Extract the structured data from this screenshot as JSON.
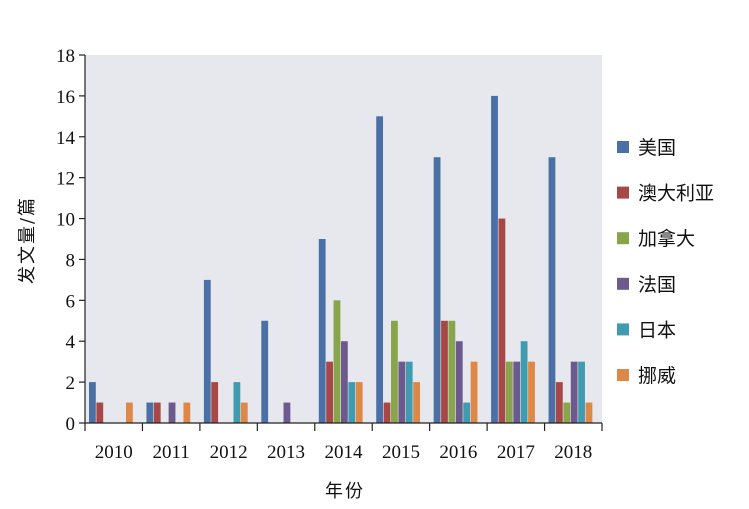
{
  "chart_data": {
    "type": "bar",
    "title": "",
    "xlabel": "年份",
    "ylabel": "发文量/篇",
    "ylim": [
      0,
      18
    ],
    "yticks": [
      0,
      2,
      4,
      6,
      8,
      10,
      12,
      14,
      16,
      18
    ],
    "categories": [
      "2010",
      "2011",
      "2012",
      "2013",
      "2014",
      "2015",
      "2016",
      "2017",
      "2018"
    ],
    "legend_position": "right",
    "plot_background": "#e7e7ee",
    "series": [
      {
        "name": "美国",
        "color": "#4a70a6",
        "values": [
          2,
          1,
          7,
          5,
          9,
          15,
          13,
          16,
          13
        ]
      },
      {
        "name": "澳大利亚",
        "color": "#a84846",
        "values": [
          1,
          1,
          2,
          0,
          3,
          1,
          5,
          10,
          2
        ]
      },
      {
        "name": "加拿大",
        "color": "#88a54c",
        "values": [
          0,
          0,
          0,
          0,
          6,
          5,
          5,
          3,
          1
        ]
      },
      {
        "name": "法国",
        "color": "#6c5a8e",
        "values": [
          0,
          1,
          0,
          1,
          4,
          3,
          4,
          3,
          3
        ]
      },
      {
        "name": "日本",
        "color": "#3f9cb0",
        "values": [
          0,
          0,
          2,
          0,
          2,
          3,
          1,
          4,
          3
        ]
      },
      {
        "name": "挪威",
        "color": "#de8847",
        "values": [
          1,
          1,
          1,
          0,
          2,
          2,
          3,
          3,
          1
        ]
      }
    ]
  }
}
